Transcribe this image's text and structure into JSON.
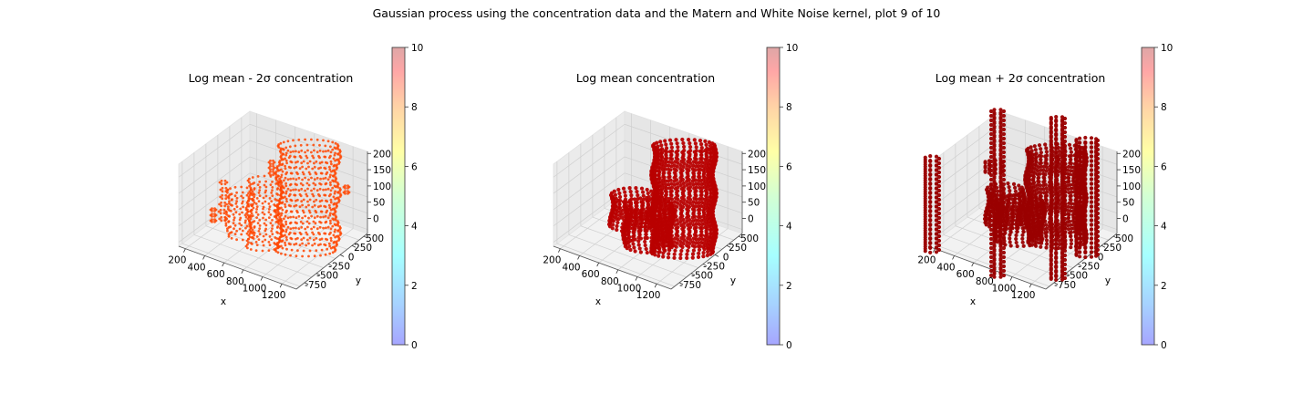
{
  "figure": {
    "suptitle": "Gaussian process using the  concentration data and the Matern and White Noise kernel, plot 9 of 10"
  },
  "colormap": [
    "#8080ff",
    "#80c0ff",
    "#80ffff",
    "#c0ffc0",
    "#ffff80",
    "#ffc080",
    "#ff8080",
    "#d08080"
  ],
  "chart_data": [
    {
      "type": "scatter3d",
      "title": "Log mean - 2σ concentration",
      "xlabel": "x",
      "ylabel": "y",
      "zlabel": "",
      "x_ticks": [
        200,
        400,
        600,
        800,
        1000,
        1200
      ],
      "y_ticks": [
        500,
        250,
        0,
        -250,
        -500,
        -750
      ],
      "z_ticks": [
        0,
        50,
        100,
        150,
        200
      ],
      "colorbar_ticks": [
        0,
        2,
        4,
        6,
        8,
        10
      ],
      "colorbar_range": [
        0,
        10
      ],
      "point_color": "#ff4500",
      "grid": true
    },
    {
      "type": "scatter3d",
      "title": "Log mean concentration",
      "xlabel": "x",
      "ylabel": "y",
      "zlabel": "",
      "x_ticks": [
        200,
        400,
        600,
        800,
        1000,
        1200
      ],
      "y_ticks": [
        500,
        250,
        0,
        -250,
        -500,
        -750
      ],
      "z_ticks": [
        0,
        50,
        100,
        150,
        200
      ],
      "colorbar_ticks": [
        0,
        2,
        4,
        6,
        8,
        10
      ],
      "colorbar_range": [
        0,
        10
      ],
      "point_color": "#b80000",
      "grid": true
    },
    {
      "type": "scatter3d",
      "title": "Log mean + 2σ concentration",
      "xlabel": "x",
      "ylabel": "y",
      "zlabel": "",
      "x_ticks": [
        200,
        400,
        600,
        800,
        1000,
        1200
      ],
      "y_ticks": [
        500,
        250,
        0,
        -250,
        -500,
        -750
      ],
      "z_ticks": [
        0,
        50,
        100,
        150,
        200
      ],
      "colorbar_ticks": [
        0,
        2,
        4,
        6,
        8,
        10
      ],
      "colorbar_range": [
        0,
        10
      ],
      "point_color": "#9a0000",
      "grid": true
    }
  ]
}
